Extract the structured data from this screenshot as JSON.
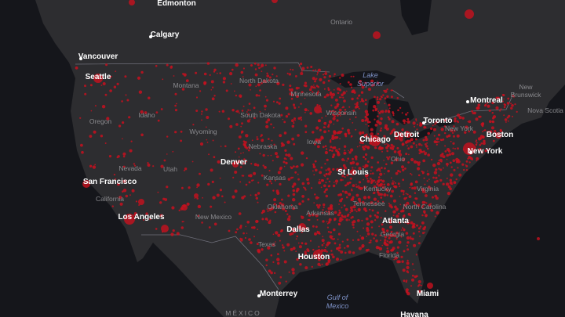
{
  "cities": [
    "Edmonton",
    "Calgary",
    "Vancouver",
    "Seattle",
    "Montreal",
    "Toronto",
    "Chicago",
    "Detroit",
    "New York",
    "Boston",
    "St Louis",
    "Denver",
    "San Francisco",
    "Los Angeles",
    "Dallas",
    "Houston",
    "Monterrey",
    "Miami",
    "Havana",
    "Atlanta"
  ],
  "regions": [
    "Ontario",
    "Montana",
    "North Dakota",
    "Minnesota",
    "Wisconsin",
    "Oregon",
    "Idaho",
    "South Dakota",
    "Wyoming",
    "Iowa",
    "Nebraska",
    "Ohio",
    "Nevada",
    "Utah",
    "Kansas",
    "Kentucky",
    "Virginia",
    "California",
    "New Mexico",
    "Oklahoma",
    "Tennessee",
    "North Carolina",
    "Arkansas",
    "Georgia",
    "Texas",
    "Florida",
    "New York",
    "Nova Scotia",
    "MÉXICO"
  ],
  "multi": [
    [
      "New",
      "Brunswick"
    ]
  ],
  "water": [
    [
      "Lake",
      "Superior"
    ],
    [
      "Gulf of",
      "Mexico"
    ]
  ]
}
